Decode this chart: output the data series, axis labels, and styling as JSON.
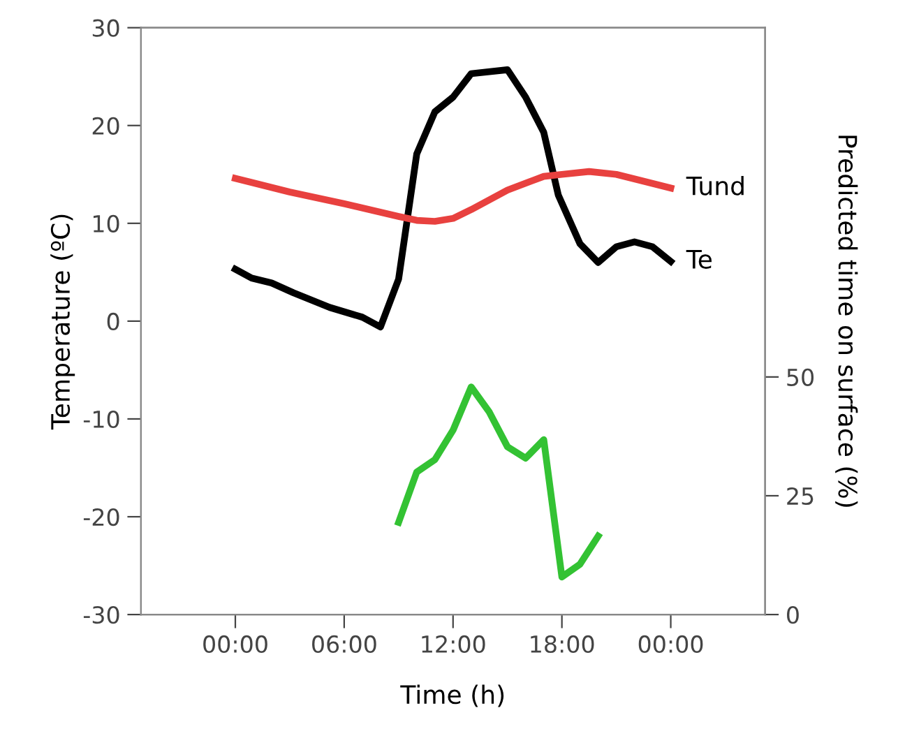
{
  "chart_data": {
    "type": "line",
    "xlabel": "Time (h)",
    "ylabel": "Temperature (ºC)",
    "y2label": "Predicted time on surface (%)",
    "xlim": [
      -5.2,
      29.2
    ],
    "xticks": [
      {
        "value": 0,
        "label": "00:00"
      },
      {
        "value": 6,
        "label": "06:00"
      },
      {
        "value": 12,
        "label": "12:00"
      },
      {
        "value": 18,
        "label": "18:00"
      },
      {
        "value": 24,
        "label": "00:00"
      }
    ],
    "ylim": [
      -30,
      30
    ],
    "yticks": [
      -30,
      -20,
      -10,
      0,
      10,
      20,
      30
    ],
    "y2lim": [
      0,
      123.5
    ],
    "y2ticks": [
      0,
      25,
      50
    ],
    "grid": false,
    "legend": false,
    "marker": "none",
    "line_style": "solid",
    "series": [
      {
        "name": "Te",
        "color": "#000000",
        "x": [
          0,
          0.9,
          2,
          3.2,
          5.2,
          7,
          8,
          9,
          10,
          11,
          12,
          13,
          15,
          16,
          17,
          17.8,
          19,
          20,
          21,
          22,
          23,
          24
        ],
        "values": [
          5.3,
          4.4,
          3.9,
          2.9,
          1.4,
          0.4,
          -0.6,
          4.3,
          17.1,
          21.4,
          22.9,
          25.3,
          25.7,
          22.9,
          19.3,
          12.9,
          7.9,
          6.0,
          7.6,
          8.1,
          7.6,
          6.1
        ]
      },
      {
        "name": "Tund",
        "color": "#e8413f",
        "x": [
          0,
          3,
          6,
          9,
          10,
          11,
          12,
          13,
          15,
          17,
          18,
          19.5,
          21,
          22.5,
          24
        ],
        "values": [
          14.6,
          13.2,
          12.0,
          10.7,
          10.3,
          10.2,
          10.5,
          11.4,
          13.4,
          14.8,
          15.0,
          15.3,
          15.0,
          14.3,
          13.6
        ]
      },
      {
        "color": "#33c233",
        "axis": "y2",
        "x": [
          9,
          10,
          11,
          12,
          13,
          14,
          15,
          16,
          17,
          18,
          19,
          20
        ],
        "values": [
          19.4,
          30,
          32.6,
          38.8,
          47.9,
          42.6,
          35.3,
          32.9,
          36.8,
          7.9,
          10.6,
          16.5
        ]
      }
    ]
  }
}
